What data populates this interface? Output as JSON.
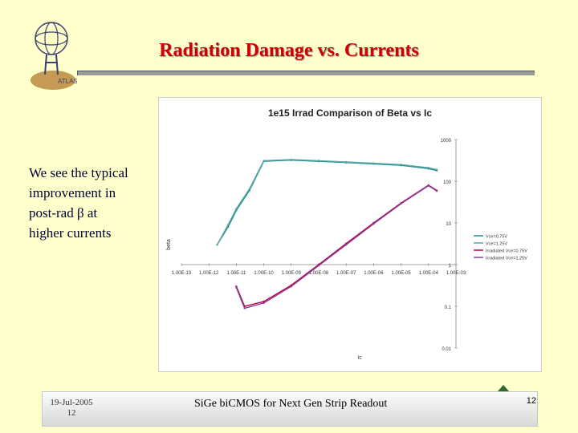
{
  "slide": {
    "title": "Radiation Damage vs. Currents",
    "logo_text": "ATLAS",
    "bullet_lines": [
      "We see the typical",
      "improvement in",
      "post-rad β at",
      "higher currents"
    ],
    "footer": {
      "date": "19-Jul-2005",
      "date_page": "12",
      "center": "SiGe biCMOS for Next Gen Strip Readout",
      "page": "12"
    }
  },
  "chart_data": {
    "type": "line",
    "title": "1e15 Irrad Comparison of Beta vs Ic",
    "xlabel": "Ic",
    "ylabel": "beta",
    "x_scale": "log",
    "y_scale": "log",
    "xlim": [
      1e-13,
      0.001
    ],
    "ylim": [
      0.01,
      1000
    ],
    "x_ticks": [
      "1.00E-13",
      "1.00E-12",
      "1.00E-11",
      "1.00E-10",
      "1.00E-09",
      "1.00E-08",
      "1.00E-07",
      "1.00E-06",
      "1.00E-05",
      "1.00E-04",
      "1.00E-03"
    ],
    "y_ticks": [
      "1000",
      "100",
      "10",
      "1",
      "0.1",
      "0.01"
    ],
    "legend_position": "right",
    "series": [
      {
        "name": "Vce=0.75V",
        "color": "#1a8c96",
        "x": [
          2e-12,
          5e-12,
          1e-11,
          3e-11,
          1e-10,
          1e-09,
          1e-08,
          1e-07,
          1e-06,
          1e-05,
          0.0001,
          0.0002
        ],
        "y": [
          3,
          8,
          20,
          60,
          300,
          320,
          300,
          280,
          260,
          240,
          200,
          180
        ]
      },
      {
        "name": "Vce=1.25V",
        "color": "#5aa6a0",
        "x": [
          2e-12,
          5e-12,
          1e-11,
          3e-11,
          1e-10,
          1e-09,
          1e-08,
          1e-07,
          1e-06,
          1e-05,
          0.0001,
          0.0002
        ],
        "y": [
          3,
          9,
          22,
          65,
          310,
          330,
          310,
          290,
          270,
          250,
          210,
          190
        ]
      },
      {
        "name": "Irradiated Vce=0.75V",
        "color": "#c00040",
        "x": [
          1e-11,
          2e-11,
          1e-10,
          1e-09,
          1e-08,
          1e-07,
          1e-06,
          1e-05,
          0.0001,
          0.0002
        ],
        "y": [
          0.3,
          0.1,
          0.13,
          0.32,
          1.0,
          3.2,
          10,
          30,
          80,
          60
        ]
      },
      {
        "name": "Irradiated Vce=1.25V",
        "color": "#8040a0",
        "x": [
          1e-11,
          2e-11,
          1e-10,
          1e-09,
          1e-08,
          1e-07,
          1e-06,
          1e-05,
          0.0001,
          0.0002
        ],
        "y": [
          0.28,
          0.09,
          0.12,
          0.3,
          0.95,
          3.0,
          9.5,
          29,
          78,
          58
        ]
      }
    ]
  }
}
